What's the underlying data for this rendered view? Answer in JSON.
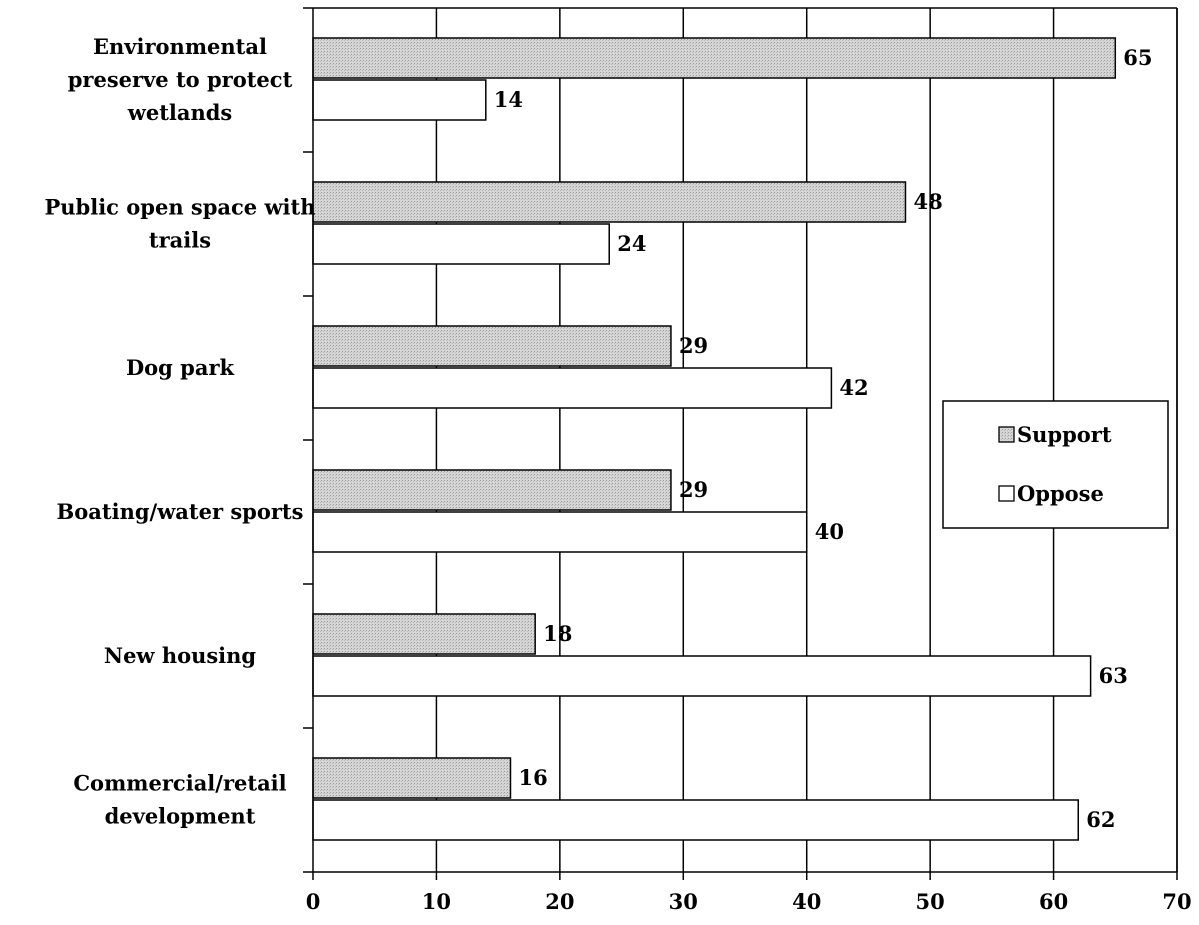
{
  "chart_data": {
    "type": "bar",
    "orientation": "horizontal",
    "categories": [
      [
        "Environmental",
        "preserve to protect",
        "wetlands"
      ],
      [
        "Public open space with",
        "trails"
      ],
      [
        "Dog park"
      ],
      [
        "Boating/water sports"
      ],
      [
        "New housing"
      ],
      [
        "Commercial/retail",
        "development"
      ]
    ],
    "series": [
      {
        "name": "Support",
        "values": [
          65,
          48,
          29,
          29,
          18,
          16
        ],
        "color": "#d4d4d4"
      },
      {
        "name": "Oppose",
        "values": [
          14,
          24,
          42,
          40,
          63,
          62
        ],
        "color": "#ffffff"
      }
    ],
    "xlim": [
      0,
      70
    ],
    "xticks": [
      "0",
      "10",
      "20",
      "30",
      "40",
      "50",
      "60",
      "70"
    ],
    "grid": "vertical",
    "legend_position": "right"
  }
}
